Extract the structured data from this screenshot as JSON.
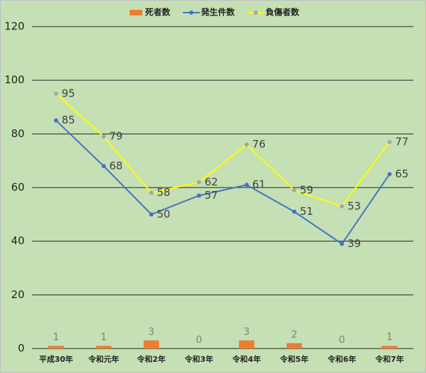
{
  "chart_data": {
    "type": "combo",
    "categories": [
      "平成30年",
      "令和元年",
      "令和2年",
      "令和3年",
      "令和4年",
      "令和5年",
      "令和6年",
      "令和7年"
    ],
    "series": [
      {
        "name": "死者数",
        "type": "bar",
        "color": "#ed7d31",
        "values": [
          1,
          1,
          3,
          0,
          3,
          2,
          0,
          1
        ]
      },
      {
        "name": "発生件数",
        "type": "line",
        "color": "#4472c4",
        "marker_color": "#4472c4",
        "values": [
          85,
          68,
          50,
          57,
          61,
          51,
          39,
          65
        ]
      },
      {
        "name": "負傷者数",
        "type": "line",
        "color": "#ffff00",
        "marker_color": "#a5a5a5",
        "values": [
          95,
          79,
          58,
          62,
          76,
          59,
          53,
          77
        ]
      }
    ],
    "ylim": [
      0,
      120
    ],
    "yticks": [
      0,
      20,
      40,
      60,
      80,
      100,
      120
    ],
    "grid": true,
    "legend": "top"
  }
}
